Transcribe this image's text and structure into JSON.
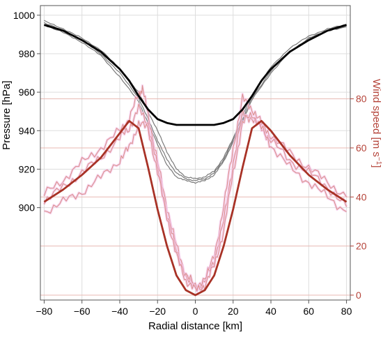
{
  "chart_data": {
    "type": "line",
    "xlabel": "Radial distance [km]",
    "ylabel_left": "Pressure [hPa]",
    "ylabel_right_main": "Wind speed [m s",
    "ylabel_right_sup": "−1",
    "ylabel_right_close": "]",
    "xlim": [
      -82,
      82
    ],
    "ylim_left": [
      852,
      1005
    ],
    "ylim_right": [
      -2,
      118
    ],
    "x_ticks": [
      -80,
      -60,
      -40,
      -20,
      0,
      20,
      40,
      60,
      80
    ],
    "x_tick_labels": [
      "−80",
      "−60",
      "−40",
      "−20",
      "0",
      "20",
      "40",
      "60",
      "80"
    ],
    "y_ticks_left": [
      900,
      920,
      940,
      960,
      980,
      1000
    ],
    "y_ticks_right": [
      0,
      20,
      40,
      60,
      80
    ],
    "grid": true,
    "colors": {
      "pressure_model": "#000000",
      "pressure_obs": "#7a7a7a",
      "wind_model": "#a83226",
      "wind_obs": "#d98f86",
      "wind_glow": "#f3c3ea",
      "right_axis": "#b5443a",
      "grid": "#dddddd"
    },
    "series": [
      {
        "axis": "left",
        "style": "model",
        "x": [
          -80,
          -70,
          -60,
          -50,
          -40,
          -35,
          -30,
          -25,
          -20,
          -15,
          -10,
          -5,
          0,
          5,
          10,
          15,
          20,
          25,
          30,
          35,
          40,
          50,
          60,
          70,
          80
        ],
        "y": [
          995,
          992,
          987,
          981,
          972,
          966,
          958,
          951,
          946,
          944,
          943,
          943,
          943,
          943,
          943,
          944,
          946,
          951,
          958,
          966,
          972,
          981,
          987,
          992,
          995
        ]
      },
      {
        "axis": "left",
        "style": "obs",
        "x": [
          -80,
          -70,
          -60,
          -50,
          -40,
          -30,
          -25,
          -20,
          -15,
          -10,
          -5,
          0,
          5,
          10,
          15,
          20,
          25,
          30,
          40,
          50,
          60,
          70,
          80
        ],
        "y": [
          997,
          993,
          988,
          982,
          972,
          960,
          950,
          940,
          929,
          920,
          916,
          915,
          916,
          919,
          926,
          936,
          948,
          958,
          973,
          983,
          989,
          993,
          995
        ]
      },
      {
        "axis": "left",
        "style": "obs",
        "x": [
          -80,
          -70,
          -60,
          -50,
          -40,
          -30,
          -25,
          -20,
          -15,
          -10,
          -5,
          0,
          5,
          10,
          15,
          20,
          25,
          30,
          40,
          50,
          60,
          70,
          80
        ],
        "y": [
          996,
          992,
          987,
          980,
          970,
          957,
          946,
          935,
          925,
          918,
          915,
          914,
          915,
          918,
          925,
          935,
          946,
          957,
          971,
          981,
          988,
          992,
          994
        ]
      },
      {
        "axis": "left",
        "style": "obs",
        "x": [
          -80,
          -70,
          -60,
          -50,
          -40,
          -30,
          -25,
          -20,
          -15,
          -10,
          -5,
          0,
          5,
          10,
          15,
          20,
          25,
          30,
          40,
          50,
          60,
          70,
          80
        ],
        "y": [
          995,
          991,
          986,
          979,
          968,
          955,
          944,
          933,
          922,
          916,
          914,
          913,
          914,
          917,
          924,
          934,
          945,
          956,
          970,
          981,
          988,
          992,
          994
        ]
      },
      {
        "axis": "right",
        "style": "model",
        "x": [
          -80,
          -70,
          -60,
          -50,
          -40,
          -35,
          -30,
          -25,
          -20,
          -15,
          -10,
          -5,
          0,
          5,
          10,
          15,
          20,
          25,
          30,
          35,
          40,
          50,
          60,
          70,
          80
        ],
        "y": [
          38,
          43,
          49,
          56,
          66,
          71,
          68,
          52,
          35,
          20,
          8,
          2,
          0,
          2,
          8,
          20,
          35,
          52,
          68,
          71,
          67,
          57,
          49,
          43,
          38
        ]
      },
      {
        "axis": "right",
        "style": "obs",
        "x": [
          -80,
          -70,
          -60,
          -50,
          -40,
          -35,
          -30,
          -28,
          -25,
          -20,
          -15,
          -10,
          -5,
          0,
          5,
          10,
          15,
          20,
          25,
          30,
          35,
          40,
          50,
          60,
          70,
          80
        ],
        "y": [
          41,
          47,
          54,
          60,
          67,
          72,
          82,
          84,
          74,
          54,
          36,
          20,
          8,
          2,
          6,
          16,
          36,
          60,
          80,
          76,
          70,
          65,
          58,
          52,
          46,
          40
        ]
      },
      {
        "axis": "right",
        "style": "obs",
        "x": [
          -80,
          -70,
          -60,
          -50,
          -40,
          -35,
          -30,
          -25,
          -20,
          -15,
          -10,
          -5,
          0,
          5,
          10,
          15,
          20,
          25,
          30,
          35,
          40,
          50,
          60,
          70,
          80
        ],
        "y": [
          38,
          44,
          50,
          56,
          64,
          68,
          76,
          70,
          52,
          33,
          18,
          8,
          4,
          6,
          14,
          30,
          54,
          74,
          72,
          68,
          63,
          55,
          50,
          44,
          36
        ]
      },
      {
        "axis": "right",
        "style": "obs",
        "x": [
          -80,
          -70,
          -60,
          -50,
          -40,
          -35,
          -30,
          -25,
          -20,
          -15,
          -10,
          -5,
          0,
          5,
          10,
          15,
          20,
          25,
          30,
          35,
          40,
          50,
          60,
          70,
          80
        ],
        "y": [
          34,
          38,
          42,
          48,
          55,
          60,
          70,
          68,
          50,
          32,
          16,
          6,
          2,
          4,
          12,
          26,
          50,
          70,
          74,
          68,
          61,
          52,
          46,
          40,
          34
        ]
      }
    ]
  }
}
